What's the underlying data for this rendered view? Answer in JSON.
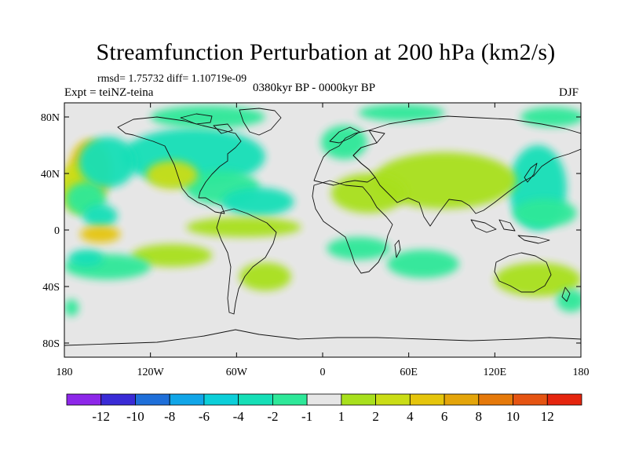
{
  "chart_data": {
    "type": "contour_map",
    "title": "Streamfunction Perturbation at 200 hPa (km2/s)",
    "stats_text": "rmsd= 1.75732  diff= 1.10719e-09",
    "experiment_label": "Expt = teiNZ-teina",
    "period_label": "0380kyr BP - 0000kyr BP",
    "season_label": "DJF",
    "xlim": [
      -180,
      180
    ],
    "ylim": [
      -90,
      90
    ],
    "x_ticks": [
      {
        "value": -180,
        "label": "180"
      },
      {
        "value": -120,
        "label": "120W"
      },
      {
        "value": -60,
        "label": "60W"
      },
      {
        "value": 0,
        "label": "0"
      },
      {
        "value": 60,
        "label": "60E"
      },
      {
        "value": 120,
        "label": "120E"
      },
      {
        "value": 180,
        "label": "180"
      }
    ],
    "y_ticks": [
      {
        "value": 80,
        "label": "80N"
      },
      {
        "value": 40,
        "label": "40N"
      },
      {
        "value": 0,
        "label": "0"
      },
      {
        "value": -40,
        "label": "40S"
      },
      {
        "value": -80,
        "label": "80S"
      }
    ],
    "colorbar": {
      "colors": [
        "#8d27e9",
        "#3a2bd6",
        "#1f6fd9",
        "#11a6e8",
        "#0ccfd9",
        "#16dfb7",
        "#2ee899",
        "#e6e6e6",
        "#a8e01d",
        "#cadd16",
        "#e5c50c",
        "#e4a50a",
        "#e5790a",
        "#e55412",
        "#e5250e"
      ],
      "labels": [
        "-12",
        "-10",
        "-8",
        "-6",
        "-4",
        "-2",
        "-1",
        "1",
        "2",
        "4",
        "6",
        "8",
        "10",
        "12"
      ]
    },
    "anomalies": [
      {
        "lon": -162,
        "lat": 42,
        "rx": 15,
        "ry": 22,
        "level": 10
      },
      {
        "lon": -170,
        "lat": 30,
        "rx": 14,
        "ry": 18,
        "level": 9
      },
      {
        "lon": -165,
        "lat": 22,
        "rx": 14,
        "ry": 12,
        "level": 6
      },
      {
        "lon": -90,
        "lat": 52,
        "rx": 50,
        "ry": 20,
        "level": 5
      },
      {
        "lon": -150,
        "lat": 48,
        "rx": 20,
        "ry": 18,
        "level": 5
      },
      {
        "lon": -70,
        "lat": 30,
        "rx": 26,
        "ry": 12,
        "level": 6
      },
      {
        "lon": -45,
        "lat": 20,
        "rx": 25,
        "ry": 10,
        "level": 5
      },
      {
        "lon": -80,
        "lat": 80,
        "rx": 40,
        "ry": 8,
        "level": 6
      },
      {
        "lon": -105,
        "lat": 39,
        "rx": 18,
        "ry": 10,
        "level": 9
      },
      {
        "lon": -55,
        "lat": 2,
        "rx": 40,
        "ry": 7,
        "level": 8
      },
      {
        "lon": -155,
        "lat": 10,
        "rx": 12,
        "ry": 8,
        "level": 5
      },
      {
        "lon": -105,
        "lat": -18,
        "rx": 28,
        "ry": 8,
        "level": 8
      },
      {
        "lon": -150,
        "lat": -26,
        "rx": 30,
        "ry": 9,
        "level": 6
      },
      {
        "lon": -165,
        "lat": -20,
        "rx": 12,
        "ry": 6,
        "level": 5
      },
      {
        "lon": -40,
        "lat": -33,
        "rx": 18,
        "ry": 10,
        "level": 8
      },
      {
        "lon": -155,
        "lat": -3,
        "rx": 14,
        "ry": 6,
        "level": 10
      },
      {
        "lon": -175,
        "lat": -55,
        "rx": 5,
        "ry": 6,
        "level": 6
      },
      {
        "lon": 15,
        "lat": 62,
        "rx": 16,
        "ry": 12,
        "level": 6
      },
      {
        "lon": 55,
        "lat": 83,
        "rx": 30,
        "ry": 6,
        "level": 6
      },
      {
        "lon": 160,
        "lat": 80,
        "rx": 22,
        "ry": 7,
        "level": 6
      },
      {
        "lon": 150,
        "lat": 30,
        "rx": 20,
        "ry": 30,
        "level": 5
      },
      {
        "lon": 85,
        "lat": 35,
        "rx": 50,
        "ry": 20,
        "level": 8
      },
      {
        "lon": 32,
        "lat": 26,
        "rx": 26,
        "ry": 14,
        "level": 8
      },
      {
        "lon": 155,
        "lat": 12,
        "rx": 22,
        "ry": 10,
        "level": 6
      },
      {
        "lon": 25,
        "lat": -13,
        "rx": 22,
        "ry": 8,
        "level": 6
      },
      {
        "lon": 70,
        "lat": -24,
        "rx": 25,
        "ry": 10,
        "level": 6
      },
      {
        "lon": 150,
        "lat": -35,
        "rx": 30,
        "ry": 12,
        "level": 8
      },
      {
        "lon": 173,
        "lat": -50,
        "rx": 10,
        "ry": 8,
        "level": 6
      }
    ]
  }
}
